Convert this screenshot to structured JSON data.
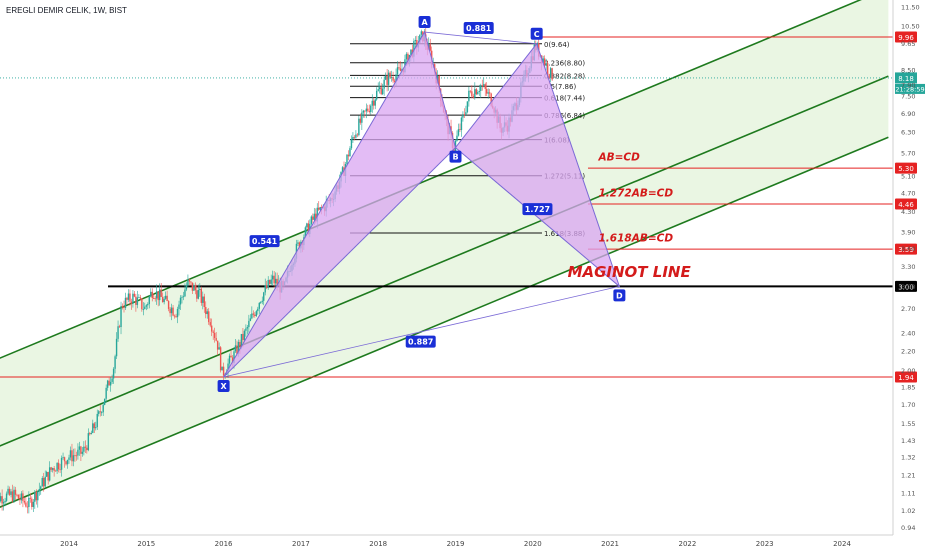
{
  "header": {
    "title": "EREGLI DEMIR CELIK, 1W, BIST"
  },
  "colors": {
    "channel_line": "#1e7a1e",
    "channel_fill": "#e8f5e0",
    "harmonic_fill": "#d9a6f2",
    "harmonic_stroke": "#7b6ad6",
    "point_label_bg": "#1a2fd6",
    "red_line": "#e52222",
    "candle_up": "#26a69a",
    "candle_down": "#ef5350",
    "cyan_dotted": "#26a69a",
    "ann_text": "#d41b1b"
  },
  "chart_data": {
    "type": "candlestick",
    "title": "EREGLI DEMIR CELIK, 1W, BIST",
    "x_ticks": [
      "2014",
      "2015",
      "2016",
      "2017",
      "2018",
      "2019",
      "2020",
      "2021",
      "2022",
      "2023",
      "2024"
    ],
    "y_scale": "log",
    "y_ticks": [
      "11.50",
      "10.50",
      "9.65",
      "8.50",
      "7.90",
      "7.50",
      "6.90",
      "6.30",
      "5.70",
      "5.10",
      "4.70",
      "4.30",
      "3.90",
      "3.60",
      "3.30",
      "3.00",
      "2.70",
      "2.40",
      "2.20",
      "2.00",
      "1.85",
      "1.70",
      "1.55",
      "1.43",
      "1.32",
      "1.21",
      "1.11",
      "1.02",
      "0.94"
    ],
    "ylim": [
      0.9,
      12.3
    ],
    "price_path": [
      [
        2013.0,
        1.08
      ],
      [
        2013.3,
        1.1
      ],
      [
        2013.5,
        1.05
      ],
      [
        2013.8,
        1.25
      ],
      [
        2014.0,
        1.32
      ],
      [
        2014.2,
        1.35
      ],
      [
        2014.4,
        1.6
      ],
      [
        2014.6,
        2.05
      ],
      [
        2014.7,
        2.75
      ],
      [
        2014.85,
        2.85
      ],
      [
        2015.0,
        2.7
      ],
      [
        2015.1,
        2.95
      ],
      [
        2015.25,
        2.8
      ],
      [
        2015.4,
        2.65
      ],
      [
        2015.55,
        3.05
      ],
      [
        2015.7,
        2.9
      ],
      [
        2015.85,
        2.55
      ],
      [
        2015.95,
        2.25
      ],
      [
        2016.0,
        1.97
      ],
      [
        2016.15,
        2.15
      ],
      [
        2016.3,
        2.4
      ],
      [
        2016.5,
        2.85
      ],
      [
        2016.65,
        3.1
      ],
      [
        2016.8,
        2.95
      ],
      [
        2016.9,
        3.4
      ],
      [
        2017.0,
        3.7
      ],
      [
        2017.2,
        4.2
      ],
      [
        2017.4,
        4.55
      ],
      [
        2017.55,
        5.1
      ],
      [
        2017.7,
        6.2
      ],
      [
        2017.85,
        6.9
      ],
      [
        2018.0,
        7.6
      ],
      [
        2018.15,
        8.2
      ],
      [
        2018.3,
        8.4
      ],
      [
        2018.45,
        9.3
      ],
      [
        2018.6,
        10.05
      ],
      [
        2018.7,
        9.1
      ],
      [
        2018.8,
        7.9
      ],
      [
        2018.9,
        6.6
      ],
      [
        2019.0,
        5.85
      ],
      [
        2019.1,
        6.6
      ],
      [
        2019.2,
        7.6
      ],
      [
        2019.35,
        7.9
      ],
      [
        2019.5,
        7.3
      ],
      [
        2019.6,
        6.4
      ],
      [
        2019.7,
        6.55
      ],
      [
        2019.8,
        7.2
      ],
      [
        2019.95,
        8.5
      ],
      [
        2020.05,
        9.55
      ],
      [
        2020.15,
        9.0
      ],
      [
        2020.25,
        8.3
      ]
    ],
    "harmonic": {
      "points": [
        {
          "label": "X",
          "x": 2016.0,
          "y": 1.94
        },
        {
          "label": "A",
          "x": 2018.6,
          "y": 10.2
        },
        {
          "label": "B",
          "x": 2019.0,
          "y": 5.85
        },
        {
          "label": "C",
          "x": 2020.05,
          "y": 9.64
        },
        {
          "label": "D",
          "x": 2021.12,
          "y": 3.0
        }
      ],
      "ratios": [
        {
          "text": "0.881",
          "x": 2019.3,
          "y": 10.4
        },
        {
          "text": "0.541",
          "x": 2016.53,
          "y": 3.73
        },
        {
          "text": "1.727",
          "x": 2020.06,
          "y": 4.35
        },
        {
          "text": "0.887",
          "x": 2018.55,
          "y": 2.3
        }
      ]
    },
    "fib_levels": [
      {
        "label": "0(9.64)",
        "value": 9.64
      },
      {
        "label": "0.236(8.80)",
        "value": 8.8
      },
      {
        "label": "0.382(8.28)",
        "value": 8.28
      },
      {
        "label": "0.5(7.86)",
        "value": 7.86
      },
      {
        "label": "0.618(7.44)",
        "value": 7.44
      },
      {
        "label": "0.786(6.84)",
        "value": 6.84
      },
      {
        "label": "1(6.08)",
        "value": 6.08
      },
      {
        "label": "1.272(5.11)",
        "value": 5.11
      },
      {
        "label": "1.618(3.88)",
        "value": 3.88
      }
    ],
    "horizontal_lines": [
      {
        "value": 9.96,
        "label": "9.96",
        "full": false
      },
      {
        "value": 5.3,
        "label": "5.30",
        "full": false
      },
      {
        "value": 4.46,
        "label": "4.46",
        "full": false
      },
      {
        "value": 3.59,
        "label": "3.59",
        "full": false
      },
      {
        "value": 3.0,
        "label": "3.00",
        "full": false
      },
      {
        "value": 1.94,
        "label": "1.94",
        "full": true
      }
    ],
    "current_price": {
      "value": 8.18,
      "label": "8.18",
      "countdown": "21:28:59"
    },
    "annotations": [
      {
        "text": "AB=CD",
        "x": 2020.85,
        "y": 5.5
      },
      {
        "text": "1.272AB=CD",
        "x": 2020.85,
        "y": 4.62
      },
      {
        "text": "1.618AB=CD",
        "x": 2020.85,
        "y": 3.72
      },
      {
        "text": "MAGINOT LINE",
        "x": 2020.45,
        "y": 3.14
      }
    ],
    "channel_lines": [
      [
        [
          2013.0,
          2.09
        ],
        [
          2024.6,
          12.6
        ]
      ],
      [
        [
          2013.0,
          1.37
        ],
        [
          2024.6,
          8.25
        ]
      ],
      [
        [
          2013.0,
          1.02
        ],
        [
          2024.6,
          6.15
        ]
      ]
    ]
  }
}
